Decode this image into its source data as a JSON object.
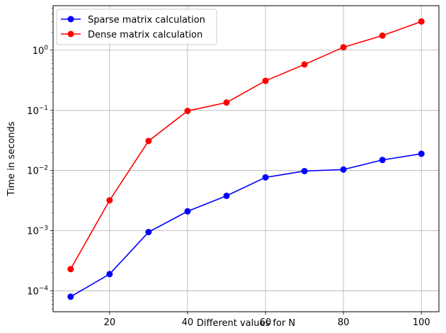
{
  "chart_data": {
    "type": "line",
    "xlabel": "Different values for N",
    "ylabel": "Time in seconds",
    "yscale": "log",
    "xlim": [
      5.5,
      104.5
    ],
    "ylim": [
      4.5e-05,
      5.5
    ],
    "grid": true,
    "legend_position": "top-left",
    "x_ticks": [
      20,
      40,
      60,
      80,
      100
    ],
    "x_tick_labels": [
      "20",
      "40",
      "60",
      "80",
      "100"
    ],
    "y_ticks": [
      0.0001,
      0.001,
      0.01,
      0.1,
      1
    ],
    "y_tick_labels": [
      {
        "base": "10",
        "exp": "−4"
      },
      {
        "base": "10",
        "exp": "−3"
      },
      {
        "base": "10",
        "exp": "−2"
      },
      {
        "base": "10",
        "exp": "−1"
      },
      {
        "base": "10",
        "exp": "0"
      }
    ],
    "x": [
      10,
      20,
      30,
      40,
      50,
      60,
      70,
      80,
      90,
      100
    ],
    "series": [
      {
        "name": "Sparse matrix calculation",
        "color": "#0000ff",
        "values": [
          8e-05,
          0.00019,
          0.00095,
          0.0021,
          0.0038,
          0.0077,
          0.0098,
          0.0104,
          0.015,
          0.019
        ]
      },
      {
        "name": "Dense matrix calculation",
        "color": "#ff0000",
        "values": [
          0.00023,
          0.0032,
          0.031,
          0.098,
          0.135,
          0.31,
          0.58,
          1.12,
          1.75,
          3.0
        ]
      }
    ]
  }
}
